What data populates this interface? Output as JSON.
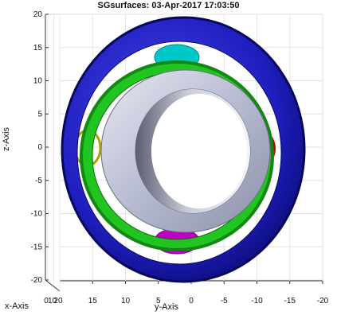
{
  "title": "SGsurfaces: 03-Apr-2017 17:03:50",
  "chart_data": {
    "type": "3d-surface",
    "title": "SGsurfaces: 03-Apr-2017 17:03:50",
    "xlabel": "x-Axis",
    "ylabel": "y-Axis",
    "zlabel": "z-Axis",
    "x_ticks": [
      0,
      10,
      20
    ],
    "y_ticks": [
      15,
      10,
      5,
      0,
      -5,
      -10,
      -15,
      -20
    ],
    "z_ticks": [
      20,
      15,
      10,
      5,
      0,
      -5,
      -10,
      -15,
      -20
    ],
    "ylim": [
      20,
      -20
    ],
    "zlim": [
      -20,
      20
    ],
    "grid": true,
    "colors": {
      "outer_ring": "#1a1ab8",
      "green_ring": "#22c422",
      "grey_ring": "#b8bcd0",
      "cyan_part": "#00c8c8",
      "magenta_part": "#c000c0",
      "yellow_ring": "#b0a000",
      "red_part": "#c00000"
    }
  }
}
